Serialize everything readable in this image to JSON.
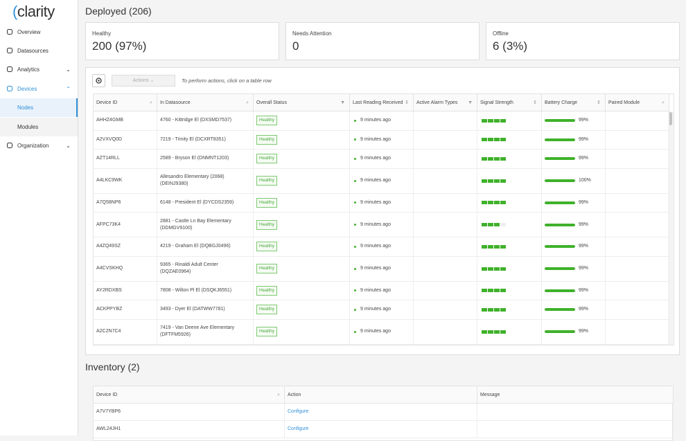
{
  "sidebar": {
    "logo": "clarity",
    "nav": [
      {
        "label": "Overview"
      },
      {
        "label": "Datasources"
      },
      {
        "label": "Analytics"
      },
      {
        "label": "Devices"
      },
      {
        "label": "Nodes"
      },
      {
        "label": "Modules"
      },
      {
        "label": "Organization"
      }
    ]
  },
  "deployed": {
    "title": "Deployed (206)",
    "cards": [
      {
        "label": "Healthy",
        "value": "200 (97%)"
      },
      {
        "label": "Needs Attention",
        "value": "0"
      },
      {
        "label": "Offline",
        "value": "6 (3%)"
      }
    ],
    "actions": "Actions",
    "hint": "To perform actions, click on a table row",
    "columns": [
      "Device ID",
      "In Datasource",
      "Overall Status",
      "Last Reading Received",
      "Active Alarm Types",
      "Signal Strength",
      "Battery Charge",
      "Paired Module"
    ],
    "rows": [
      {
        "id": "AHHZ4GMB",
        "datasource": "4760 - Kittridge El (DXSMD7537)",
        "status": "Healthy",
        "reading": "9 minutes ago",
        "signal": 4,
        "battery": {
          "value": 99,
          "label": "99%"
        }
      },
      {
        "id": "A2VXVQ0D",
        "datasource": "7219 - Trinity El (DCXRT8351)",
        "status": "Healthy",
        "reading": "9 minutes ago",
        "signal": 4,
        "battery": {
          "value": 99,
          "label": "99%"
        }
      },
      {
        "id": "AZT14RLL",
        "datasource": "2589 - Bryson El (DNMNT1203)",
        "status": "Healthy",
        "reading": "9 minutes ago",
        "signal": 4,
        "battery": {
          "value": 99,
          "label": "99%"
        }
      },
      {
        "id": "A4LKC9WK",
        "datasource": "Allesandro Elementary (2068) (DEINJ9380)",
        "status": "Healthy",
        "reading": "9 minutes ago",
        "signal": 4,
        "battery": {
          "value": 100,
          "label": "100%"
        }
      },
      {
        "id": "A7Q58NP6",
        "datasource": "6148 - President El (DYCDS2359)",
        "status": "Healthy",
        "reading": "9 minutes ago",
        "signal": 4,
        "battery": {
          "value": 99,
          "label": "99%"
        }
      },
      {
        "id": "AFPC73K4",
        "datasource": "2881 - Castle Ln Bay Elementary (DDMGV9100)",
        "status": "Healthy",
        "reading": "9 minutes ago",
        "signal": 3,
        "battery": {
          "value": 99,
          "label": "99%"
        }
      },
      {
        "id": "A4ZQ49SZ",
        "datasource": "4219 - Graham El (DQBGJ0496)",
        "status": "Healthy",
        "reading": "9 minutes ago",
        "signal": 4,
        "battery": {
          "value": 99,
          "label": "99%"
        }
      },
      {
        "id": "A4CVSKHQ",
        "datasource": "9365 - Rinaldi Adult Center (DQZAE0964)",
        "status": "Healthy",
        "reading": "9 minutes ago",
        "signal": 4,
        "battery": {
          "value": 99,
          "label": "99%"
        }
      },
      {
        "id": "AY2RDXBS",
        "datasource": "7808 - Wilton Pl El (DSQKJ6551)",
        "status": "Healthy",
        "reading": "9 minutes ago",
        "signal": 4,
        "battery": {
          "value": 99,
          "label": "99%"
        }
      },
      {
        "id": "ACKPPYBZ",
        "datasource": "3493 - Dyer El (DATWW7781)",
        "status": "Healthy",
        "reading": "9 minutes ago",
        "signal": 4,
        "battery": {
          "value": 99,
          "label": "99%"
        }
      },
      {
        "id": "A2C2N7C4",
        "datasource": "7419 - Van Deene Ave Elementary (DFTFM5926)",
        "status": "Healthy",
        "reading": "9 minutes ago",
        "signal": 4,
        "battery": {
          "value": 99,
          "label": "99%"
        }
      }
    ]
  },
  "inventory": {
    "title": "Inventory (2)",
    "columns": [
      "Device ID",
      "Action",
      "Message"
    ],
    "rows": [
      {
        "id": "A7V7YBP6",
        "action": "Configure"
      },
      {
        "id": "AWL24JH1",
        "action": "Configure"
      }
    ]
  }
}
